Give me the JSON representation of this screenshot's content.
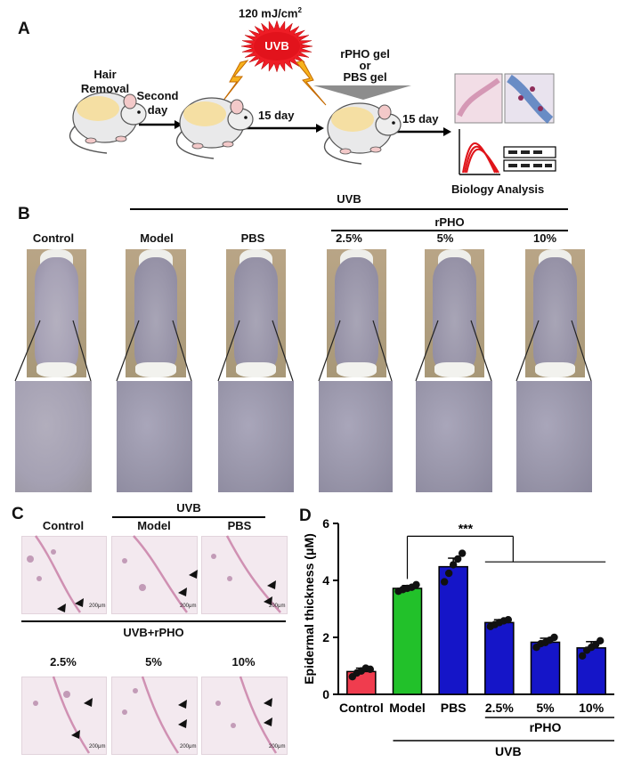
{
  "panelA": {
    "letter": "A",
    "hair_removal": [
      "Hair",
      "Removal"
    ],
    "second_day": [
      "Second",
      "day"
    ],
    "dose": "120 mJ/cm",
    "dose_sup": "2",
    "uvb_badge": "UVB",
    "day15_a": "15 day",
    "gel": [
      "rPHO gel",
      "or",
      "PBS gel"
    ],
    "day15_b": "15 day",
    "biology": "Biology Analysis"
  },
  "panelB": {
    "letter": "B",
    "uvb": "UVB",
    "rpho": "rPHO",
    "groups": [
      "Control",
      "Model",
      "PBS",
      "2.5%",
      "5%",
      "10%"
    ]
  },
  "panelC": {
    "letter": "C",
    "top_labels": [
      "Control",
      "Model",
      "PBS"
    ],
    "uvb": "UVB",
    "uvb_rpho": "UVB+rPHO",
    "bottom_labels": [
      "2.5%",
      "5%",
      "10%"
    ],
    "scale": "200μm"
  },
  "panelD": {
    "letter": "D",
    "significance": "***",
    "uvb": "UVB",
    "rpho": "rPHO"
  },
  "chart_data": {
    "type": "bar",
    "categories": [
      "Control",
      "Model",
      "PBS",
      "2.5%",
      "5%",
      "10%"
    ],
    "values": [
      0.8,
      3.72,
      4.48,
      2.52,
      1.83,
      1.63
    ],
    "errors": [
      0.12,
      0.1,
      0.3,
      0.1,
      0.14,
      0.22
    ],
    "points": [
      [
        0.62,
        0.75,
        0.82,
        0.92,
        0.88
      ],
      [
        3.62,
        3.68,
        3.72,
        3.76,
        3.85
      ],
      [
        3.95,
        4.25,
        4.55,
        4.75,
        4.95
      ],
      [
        2.38,
        2.45,
        2.52,
        2.58,
        2.62
      ],
      [
        1.65,
        1.78,
        1.82,
        1.9,
        2.0
      ],
      [
        1.35,
        1.55,
        1.65,
        1.75,
        1.88
      ]
    ],
    "colors": [
      "#f03c4e",
      "#22c12a",
      "#1515c8",
      "#1515c8",
      "#1515c8",
      "#1515c8"
    ],
    "ylabel": "Epidermal thickness (μM)",
    "yticks": [
      0,
      2,
      4,
      6
    ],
    "ylim": [
      0,
      6
    ]
  }
}
